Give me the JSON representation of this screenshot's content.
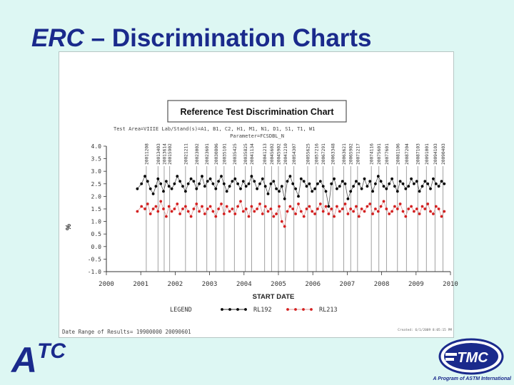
{
  "slide": {
    "title_main": "ERC",
    "title_rest": "– Discrimination Charts",
    "logo_left_main": "A",
    "logo_left_super": "TC",
    "logo_right_text": "TMC",
    "logo_right_tagline": "A Program of ASTM International"
  },
  "chart_data": {
    "type": "line",
    "title": "Reference Test Discrimination Chart",
    "header_line1": "Test Area=VIIIE Lab/Stand(s)=A1, B1, C2, H1, M1, N1, D1, S1, T1, W1",
    "header_line2": "Parameter=FCSDBL_N",
    "xlabel": "START DATE",
    "ylabel": "%",
    "xlim": [
      2000,
      2010
    ],
    "ylim": [
      -1.0,
      4.0
    ],
    "x_ticks": [
      "2000",
      "2001",
      "2002",
      "2003",
      "2004",
      "2005",
      "2006",
      "2007",
      "2008",
      "2009",
      "2010"
    ],
    "y_ticks": [
      "4.0",
      "3.5",
      "3.0",
      "2.5",
      "2.0",
      "1.5",
      "1.0",
      "0.5",
      "0.0",
      "-0.5",
      "-1.0"
    ],
    "reference_lines": [
      {
        "x": 2001.16,
        "label": "20011208"
      },
      {
        "x": 2001.5,
        "label": "20013403"
      },
      {
        "x": 2001.68,
        "label": "20013614"
      },
      {
        "x": 2001.84,
        "label": "20015902"
      },
      {
        "x": 2002.3,
        "label": "20021211"
      },
      {
        "x": 2002.62,
        "label": "20023002"
      },
      {
        "x": 2002.92,
        "label": "20023601"
      },
      {
        "x": 2003.18,
        "label": "20030806"
      },
      {
        "x": 2003.42,
        "label": "20035101"
      },
      {
        "x": 2003.72,
        "label": "20035425"
      },
      {
        "x": 2004.04,
        "label": "20035825"
      },
      {
        "x": 2004.22,
        "label": "20041134"
      },
      {
        "x": 2004.6,
        "label": "20041213"
      },
      {
        "x": 2004.8,
        "label": "20045602"
      },
      {
        "x": 2005.0,
        "label": "20045902"
      },
      {
        "x": 2005.2,
        "label": "20041210"
      },
      {
        "x": 2005.45,
        "label": "20054307"
      },
      {
        "x": 2005.85,
        "label": "20055625"
      },
      {
        "x": 2006.1,
        "label": "20057216"
      },
      {
        "x": 2006.3,
        "label": "20067291"
      },
      {
        "x": 2006.58,
        "label": "20063348"
      },
      {
        "x": 2006.9,
        "label": "20063621"
      },
      {
        "x": 2007.1,
        "label": "20065902"
      },
      {
        "x": 2007.3,
        "label": "20071217"
      },
      {
        "x": 2007.7,
        "label": "20074116"
      },
      {
        "x": 2007.92,
        "label": "20075601"
      },
      {
        "x": 2008.14,
        "label": "20077601"
      },
      {
        "x": 2008.46,
        "label": "20081106"
      },
      {
        "x": 2008.72,
        "label": "20087204"
      },
      {
        "x": 2009.05,
        "label": "20087103"
      },
      {
        "x": 2009.3,
        "label": "20091001"
      },
      {
        "x": 2009.55,
        "label": "20094103"
      },
      {
        "x": 2009.78,
        "label": "20090403"
      }
    ],
    "series": [
      {
        "name": "RL192",
        "color": "#000000",
        "x": [
          2000.9,
          2001.02,
          2001.12,
          2001.2,
          2001.28,
          2001.36,
          2001.44,
          2001.5,
          2001.58,
          2001.66,
          2001.74,
          2001.82,
          2001.9,
          2001.98,
          2002.06,
          2002.14,
          2002.22,
          2002.3,
          2002.38,
          2002.46,
          2002.54,
          2002.62,
          2002.7,
          2002.78,
          2002.86,
          2002.94,
          2003.02,
          2003.1,
          2003.18,
          2003.26,
          2003.34,
          2003.42,
          2003.5,
          2003.58,
          2003.66,
          2003.74,
          2003.82,
          2003.9,
          2003.98,
          2004.06,
          2004.14,
          2004.22,
          2004.3,
          2004.38,
          2004.46,
          2004.54,
          2004.62,
          2004.7,
          2004.78,
          2004.86,
          2004.94,
          2005.02,
          2005.1,
          2005.18,
          2005.26,
          2005.34,
          2005.42,
          2005.5,
          2005.58,
          2005.66,
          2005.74,
          2005.82,
          2005.9,
          2005.98,
          2006.06,
          2006.14,
          2006.22,
          2006.3,
          2006.38,
          2006.46,
          2006.54,
          2006.62,
          2006.7,
          2006.78,
          2006.86,
          2006.94,
          2007.02,
          2007.1,
          2007.18,
          2007.26,
          2007.34,
          2007.42,
          2007.5,
          2007.58,
          2007.66,
          2007.74,
          2007.82,
          2007.9,
          2007.98,
          2008.06,
          2008.14,
          2008.22,
          2008.3,
          2008.38,
          2008.46,
          2008.54,
          2008.62,
          2008.7,
          2008.78,
          2008.86,
          2008.94,
          2009.02,
          2009.1,
          2009.18,
          2009.26,
          2009.34,
          2009.42,
          2009.5,
          2009.58,
          2009.66,
          2009.74,
          2009.82
        ],
        "values": [
          2.3,
          2.5,
          2.8,
          2.6,
          2.3,
          2.1,
          2.4,
          2.7,
          2.5,
          2.2,
          2.6,
          2.4,
          2.3,
          2.5,
          2.8,
          2.6,
          2.4,
          2.2,
          2.5,
          2.7,
          2.6,
          2.3,
          2.5,
          2.8,
          2.4,
          2.6,
          2.7,
          2.5,
          2.3,
          2.6,
          2.8,
          2.5,
          2.2,
          2.4,
          2.6,
          2.7,
          2.5,
          2.3,
          2.6,
          2.4,
          2.5,
          2.8,
          2.6,
          2.3,
          2.5,
          2.7,
          2.4,
          2.1,
          2.5,
          2.6,
          2.3,
          2.2,
          2.4,
          1.9,
          2.6,
          2.8,
          2.5,
          2.3,
          2.0,
          2.7,
          2.6,
          2.4,
          2.5,
          2.2,
          2.3,
          2.5,
          2.6,
          2.4,
          2.2,
          1.6,
          2.5,
          2.7,
          2.3,
          2.4,
          2.6,
          2.5,
          1.9,
          2.2,
          2.4,
          2.6,
          2.5,
          2.3,
          2.7,
          2.4,
          2.6,
          2.2,
          2.5,
          2.8,
          2.6,
          2.4,
          2.3,
          2.5,
          2.7,
          2.4,
          2.2,
          2.6,
          2.5,
          2.3,
          2.4,
          2.7,
          2.5,
          2.6,
          2.2,
          2.4,
          2.6,
          2.5,
          2.3,
          2.7,
          2.5,
          2.4,
          2.6,
          2.5
        ]
      },
      {
        "name": "RL213",
        "color": "#d42020",
        "x": [
          2000.9,
          2001.02,
          2001.12,
          2001.2,
          2001.28,
          2001.36,
          2001.44,
          2001.5,
          2001.58,
          2001.66,
          2001.74,
          2001.82,
          2001.9,
          2001.98,
          2002.06,
          2002.14,
          2002.22,
          2002.3,
          2002.38,
          2002.46,
          2002.54,
          2002.62,
          2002.7,
          2002.78,
          2002.86,
          2002.94,
          2003.02,
          2003.1,
          2003.18,
          2003.26,
          2003.34,
          2003.42,
          2003.5,
          2003.58,
          2003.66,
          2003.74,
          2003.82,
          2003.9,
          2003.98,
          2004.06,
          2004.14,
          2004.22,
          2004.3,
          2004.38,
          2004.46,
          2004.54,
          2004.62,
          2004.7,
          2004.78,
          2004.86,
          2004.94,
          2005.02,
          2005.1,
          2005.18,
          2005.26,
          2005.34,
          2005.42,
          2005.5,
          2005.58,
          2005.66,
          2005.74,
          2005.82,
          2005.9,
          2005.98,
          2006.06,
          2006.14,
          2006.22,
          2006.3,
          2006.38,
          2006.46,
          2006.54,
          2006.62,
          2006.7,
          2006.78,
          2006.86,
          2006.94,
          2007.02,
          2007.1,
          2007.18,
          2007.26,
          2007.34,
          2007.42,
          2007.5,
          2007.58,
          2007.66,
          2007.74,
          2007.82,
          2007.9,
          2007.98,
          2008.06,
          2008.14,
          2008.22,
          2008.3,
          2008.38,
          2008.46,
          2008.54,
          2008.62,
          2008.7,
          2008.78,
          2008.86,
          2008.94,
          2009.02,
          2009.1,
          2009.18,
          2009.26,
          2009.34,
          2009.42,
          2009.5,
          2009.58,
          2009.66,
          2009.74,
          2009.82
        ],
        "values": [
          1.4,
          1.6,
          1.5,
          1.7,
          1.3,
          1.5,
          1.6,
          1.4,
          1.8,
          1.5,
          1.2,
          1.6,
          1.4,
          1.5,
          1.7,
          1.3,
          1.5,
          1.6,
          1.4,
          1.2,
          1.5,
          1.7,
          1.4,
          1.6,
          1.3,
          1.5,
          1.6,
          1.4,
          1.2,
          1.5,
          1.7,
          1.3,
          1.6,
          1.4,
          1.5,
          1.3,
          1.6,
          1.8,
          1.4,
          1.5,
          1.2,
          1.6,
          1.4,
          1.5,
          1.7,
          1.3,
          1.6,
          1.4,
          1.5,
          1.2,
          1.3,
          1.6,
          1.0,
          0.8,
          1.4,
          1.6,
          1.5,
          1.3,
          1.7,
          1.4,
          1.2,
          1.5,
          1.6,
          1.4,
          1.3,
          1.5,
          1.7,
          1.4,
          1.6,
          1.3,
          1.5,
          1.2,
          1.6,
          1.4,
          1.5,
          1.7,
          1.3,
          1.5,
          1.4,
          1.6,
          1.2,
          1.5,
          1.4,
          1.6,
          1.7,
          1.3,
          1.5,
          1.4,
          1.6,
          1.8,
          1.5,
          1.3,
          1.4,
          1.6,
          1.5,
          1.7,
          1.4,
          1.2,
          1.5,
          1.6,
          1.4,
          1.5,
          1.3,
          1.6,
          1.5,
          1.7,
          1.4,
          1.3,
          1.6,
          1.5,
          1.2,
          1.4
        ]
      }
    ],
    "legend_label": "LEGEND",
    "date_range": "Date Range of Results=   19900000 20090601",
    "created": "Created: 6/1/2009 8:05:15 PM"
  }
}
